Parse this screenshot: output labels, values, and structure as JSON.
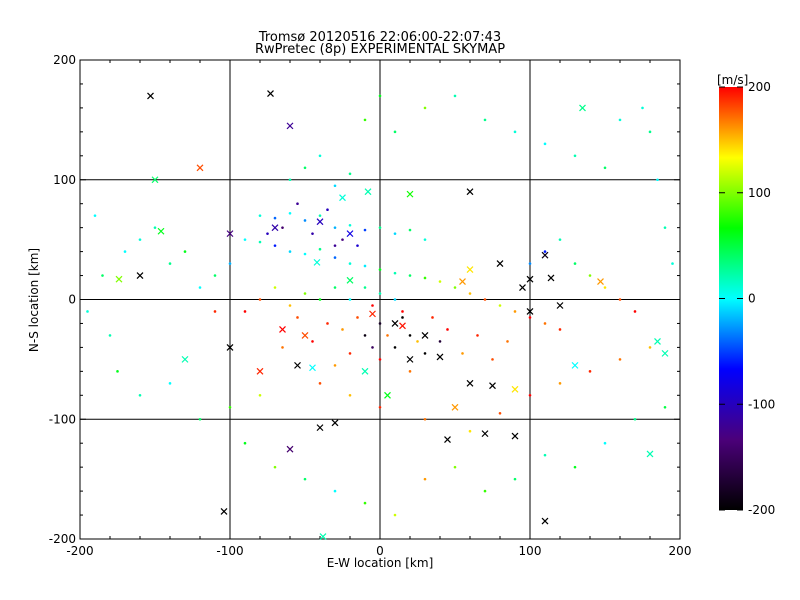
{
  "chart_data": {
    "type": "scatter",
    "title": "Tromsø 20120516 22:06:00-22:07:43",
    "subtitle": "RwPretec (8p) EXPERIMENTAL SKYMAP",
    "xlabel": "E-W location [km]",
    "ylabel": "N-S location [km]",
    "xlim": [
      -200,
      200
    ],
    "ylim": [
      -200,
      200
    ],
    "xticks": [
      -200,
      -100,
      0,
      100,
      200
    ],
    "yticks": [
      -200,
      -100,
      0,
      100,
      200
    ],
    "grid": true,
    "colorbar": {
      "label": "[m/s]",
      "min": -200,
      "max": 200,
      "ticks": [
        200,
        100,
        0,
        -100,
        -200
      ],
      "stops": [
        "#000000",
        "#4b007a",
        "#0000ff",
        "#00ffff",
        "#00ff00",
        "#ffff00",
        "#ff0000"
      ]
    },
    "series": [
      {
        "marker": "x",
        "points": [
          [
            -153,
            170,
            -200
          ],
          [
            -73,
            172,
            -200
          ],
          [
            -60,
            145,
            -120
          ],
          [
            -150,
            100,
            40
          ],
          [
            -146,
            57,
            60
          ],
          [
            -100,
            55,
            -130
          ],
          [
            -70,
            60,
            -110
          ],
          [
            -40,
            65,
            -100
          ],
          [
            -20,
            55,
            -80
          ],
          [
            60,
            90,
            -200
          ],
          [
            110,
            37,
            -190
          ],
          [
            100,
            17,
            -200
          ],
          [
            114,
            18,
            -200
          ],
          [
            80,
            30,
            -200
          ],
          [
            147,
            15,
            160
          ],
          [
            -160,
            20,
            -200
          ],
          [
            -174,
            17,
            100
          ],
          [
            -42,
            31,
            10
          ],
          [
            -20,
            16,
            40
          ],
          [
            60,
            25,
            140
          ],
          [
            -5,
            -12,
            190
          ],
          [
            10,
            -20,
            -200
          ],
          [
            15,
            -22,
            195
          ],
          [
            30,
            -30,
            -200
          ],
          [
            40,
            -48,
            -200
          ],
          [
            20,
            -50,
            -200
          ],
          [
            -55,
            -55,
            -200
          ],
          [
            -45,
            -57,
            0
          ],
          [
            -40,
            -107,
            -200
          ],
          [
            -30,
            -103,
            -200
          ],
          [
            -60,
            -125,
            -140
          ],
          [
            45,
            -117,
            -200
          ],
          [
            70,
            -112,
            -200
          ],
          [
            90,
            -114,
            -200
          ],
          [
            110,
            -185,
            -200
          ],
          [
            -104,
            -177,
            -200
          ],
          [
            -38,
            -198,
            20
          ],
          [
            180,
            -129,
            20
          ],
          [
            -65,
            -25,
            200
          ],
          [
            -80,
            -60,
            190
          ],
          [
            -100,
            -40,
            -200
          ],
          [
            -130,
            -50,
            20
          ],
          [
            130,
            -55,
            0
          ],
          [
            90,
            -75,
            140
          ],
          [
            50,
            -90,
            160
          ],
          [
            -10,
            -60,
            20
          ],
          [
            5,
            -80,
            60
          ],
          [
            -50,
            -30,
            180
          ],
          [
            190,
            -45,
            20
          ],
          [
            185,
            -35,
            20
          ],
          [
            60,
            -70,
            -200
          ],
          [
            75,
            -72,
            -200
          ],
          [
            95,
            10,
            -200
          ],
          [
            120,
            -5,
            -200
          ],
          [
            100,
            -10,
            -200
          ],
          [
            55,
            15,
            160
          ],
          [
            -120,
            110,
            180
          ],
          [
            -25,
            85,
            10
          ],
          [
            -8,
            90,
            20
          ],
          [
            20,
            88,
            70
          ],
          [
            135,
            160,
            30
          ]
        ]
      },
      {
        "marker": "dot",
        "points": [
          [
            -80,
            70,
            10
          ],
          [
            -70,
            68,
            -40
          ],
          [
            -60,
            72,
            0
          ],
          [
            -50,
            66,
            -30
          ],
          [
            -40,
            70,
            20
          ],
          [
            -30,
            60,
            -20
          ],
          [
            -20,
            62,
            10
          ],
          [
            -10,
            58,
            -50
          ],
          [
            0,
            60,
            30
          ],
          [
            10,
            55,
            -10
          ],
          [
            20,
            58,
            40
          ],
          [
            30,
            50,
            10
          ],
          [
            -90,
            50,
            0
          ],
          [
            -80,
            48,
            20
          ],
          [
            -70,
            45,
            -60
          ],
          [
            -60,
            40,
            -10
          ],
          [
            -50,
            38,
            0
          ],
          [
            -40,
            42,
            30
          ],
          [
            -30,
            35,
            -40
          ],
          [
            -20,
            30,
            10
          ],
          [
            -10,
            28,
            -5
          ],
          [
            0,
            25,
            60
          ],
          [
            10,
            22,
            20
          ],
          [
            20,
            20,
            40
          ],
          [
            30,
            18,
            80
          ],
          [
            40,
            15,
            120
          ],
          [
            50,
            10,
            100
          ],
          [
            60,
            5,
            150
          ],
          [
            70,
            0,
            180
          ],
          [
            80,
            -5,
            120
          ],
          [
            90,
            -10,
            160
          ],
          [
            100,
            -15,
            200
          ],
          [
            110,
            -20,
            170
          ],
          [
            120,
            -25,
            190
          ],
          [
            -100,
            30,
            -20
          ],
          [
            -110,
            20,
            40
          ],
          [
            -120,
            10,
            0
          ],
          [
            -130,
            40,
            60
          ],
          [
            -140,
            30,
            30
          ],
          [
            -150,
            60,
            20
          ],
          [
            -160,
            50,
            10
          ],
          [
            -170,
            40,
            0
          ],
          [
            -60,
            100,
            20
          ],
          [
            -50,
            110,
            40
          ],
          [
            -40,
            120,
            10
          ],
          [
            -30,
            95,
            -10
          ],
          [
            -20,
            105,
            30
          ],
          [
            -10,
            150,
            80
          ],
          [
            0,
            170,
            60
          ],
          [
            10,
            140,
            40
          ],
          [
            30,
            160,
            100
          ],
          [
            50,
            170,
            20
          ],
          [
            70,
            150,
            30
          ],
          [
            90,
            140,
            10
          ],
          [
            110,
            130,
            0
          ],
          [
            130,
            120,
            20
          ],
          [
            150,
            110,
            40
          ],
          [
            160,
            150,
            10
          ],
          [
            -5,
            -5,
            200
          ],
          [
            -15,
            -15,
            180
          ],
          [
            -25,
            -25,
            160
          ],
          [
            -35,
            -20,
            190
          ],
          [
            5,
            -30,
            170
          ],
          [
            15,
            -10,
            200
          ],
          [
            25,
            -35,
            150
          ],
          [
            35,
            -15,
            190
          ],
          [
            -45,
            -35,
            200
          ],
          [
            -55,
            -15,
            180
          ],
          [
            -65,
            -40,
            170
          ],
          [
            45,
            -25,
            200
          ],
          [
            55,
            -45,
            160
          ],
          [
            65,
            -30,
            190
          ],
          [
            75,
            -50,
            180
          ],
          [
            85,
            -35,
            170
          ],
          [
            -20,
            -45,
            190
          ],
          [
            0,
            -50,
            200
          ],
          [
            20,
            -60,
            170
          ],
          [
            -30,
            -55,
            160
          ],
          [
            10,
            -40,
            -200
          ],
          [
            20,
            -30,
            -200
          ],
          [
            0,
            -20,
            -180
          ],
          [
            -10,
            -30,
            -190
          ],
          [
            30,
            -45,
            -200
          ],
          [
            40,
            -35,
            -170
          ],
          [
            -5,
            -40,
            -150
          ],
          [
            15,
            -15,
            -200
          ],
          [
            -40,
            -70,
            180
          ],
          [
            -20,
            -80,
            150
          ],
          [
            0,
            -90,
            190
          ],
          [
            30,
            -100,
            170
          ],
          [
            60,
            -110,
            140
          ],
          [
            80,
            -95,
            180
          ],
          [
            100,
            -80,
            200
          ],
          [
            120,
            -70,
            160
          ],
          [
            140,
            -60,
            190
          ],
          [
            160,
            -50,
            170
          ],
          [
            180,
            -40,
            150
          ],
          [
            -80,
            -80,
            120
          ],
          [
            -100,
            -90,
            80
          ],
          [
            -120,
            -100,
            40
          ],
          [
            -140,
            -70,
            0
          ],
          [
            -160,
            -80,
            20
          ],
          [
            -90,
            -120,
            60
          ],
          [
            -70,
            -140,
            100
          ],
          [
            -50,
            -150,
            40
          ],
          [
            -30,
            -160,
            0
          ],
          [
            -10,
            -170,
            80
          ],
          [
            10,
            -180,
            120
          ],
          [
            30,
            -150,
            160
          ],
          [
            50,
            -140,
            100
          ],
          [
            70,
            -160,
            80
          ],
          [
            90,
            -150,
            40
          ],
          [
            110,
            -130,
            20
          ],
          [
            130,
            -140,
            60
          ],
          [
            150,
            -120,
            0
          ],
          [
            170,
            -100,
            30
          ],
          [
            190,
            -90,
            50
          ],
          [
            195,
            30,
            10
          ],
          [
            190,
            60,
            20
          ],
          [
            185,
            100,
            0
          ],
          [
            180,
            140,
            30
          ],
          [
            175,
            160,
            10
          ],
          [
            -190,
            70,
            0
          ],
          [
            -185,
            20,
            40
          ],
          [
            -180,
            -30,
            20
          ],
          [
            -175,
            -60,
            60
          ],
          [
            -195,
            -10,
            10
          ],
          [
            -20,
            0,
            0
          ],
          [
            -10,
            10,
            30
          ],
          [
            0,
            5,
            20
          ],
          [
            10,
            0,
            -10
          ],
          [
            -30,
            10,
            40
          ],
          [
            -40,
            0,
            60
          ],
          [
            -50,
            5,
            100
          ],
          [
            -60,
            -5,
            150
          ],
          [
            -70,
            10,
            120
          ],
          [
            -80,
            0,
            180
          ],
          [
            -90,
            -10,
            200
          ],
          [
            -110,
            -10,
            190
          ],
          [
            100,
            30,
            -30
          ],
          [
            110,
            40,
            -60
          ],
          [
            120,
            50,
            20
          ],
          [
            130,
            30,
            40
          ],
          [
            140,
            20,
            100
          ],
          [
            150,
            10,
            140
          ],
          [
            160,
            0,
            180
          ],
          [
            170,
            -10,
            200
          ],
          [
            -30,
            45,
            -120
          ],
          [
            -25,
            50,
            -130
          ],
          [
            -45,
            55,
            -110
          ],
          [
            -35,
            75,
            -100
          ],
          [
            -55,
            80,
            -120
          ],
          [
            -15,
            45,
            -90
          ],
          [
            -65,
            60,
            -140
          ],
          [
            -75,
            55,
            -100
          ]
        ]
      }
    ]
  }
}
